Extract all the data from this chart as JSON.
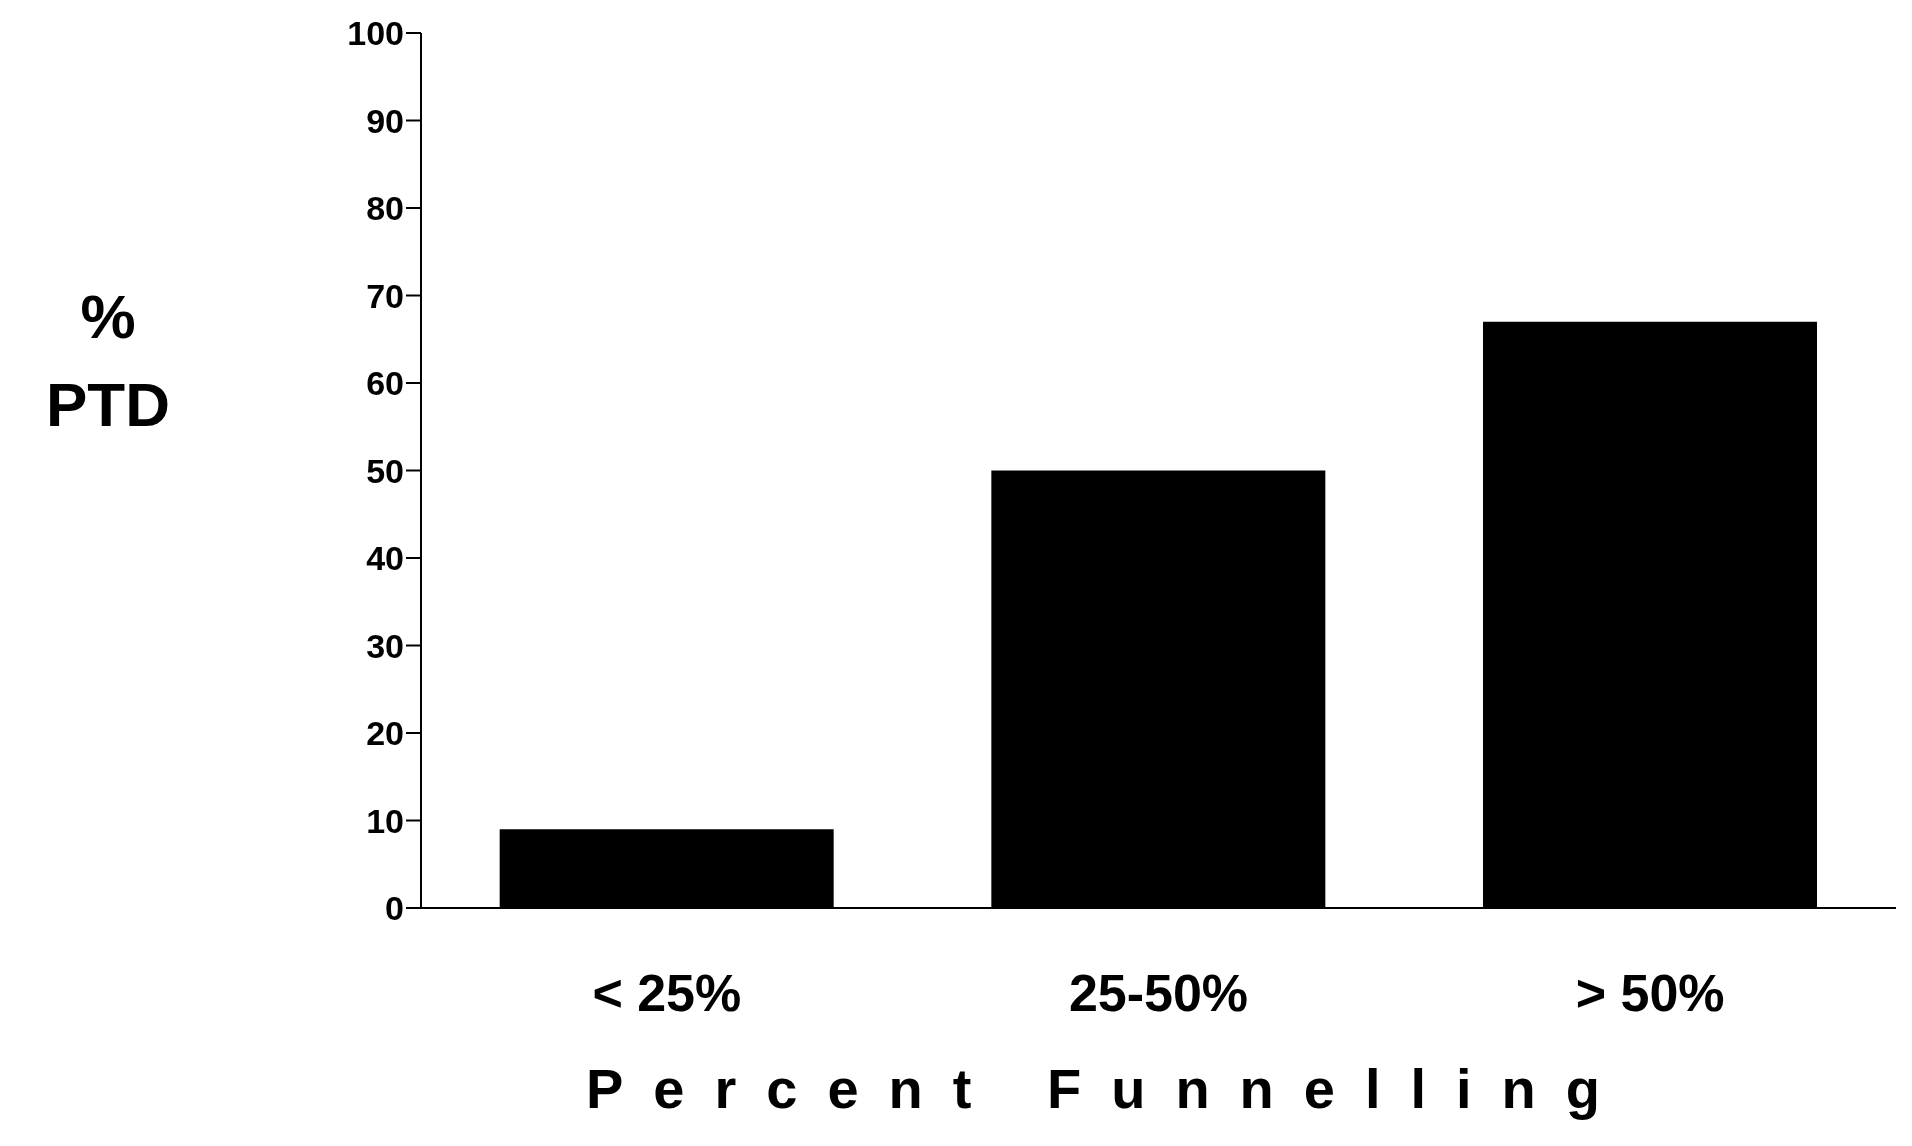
{
  "chart_data": {
    "type": "bar",
    "xlabel": "Percent Funnelling",
    "ylabel": "% PTD",
    "categories": [
      "< 25%",
      "25-50%",
      "> 50%"
    ],
    "values": [
      9,
      50,
      67
    ],
    "color": "#000000",
    "ylim": [
      0,
      100
    ],
    "yticks": [
      0,
      10,
      20,
      30,
      40,
      50,
      60,
      70,
      80,
      90,
      100
    ],
    "grid": false,
    "legend": false
  }
}
